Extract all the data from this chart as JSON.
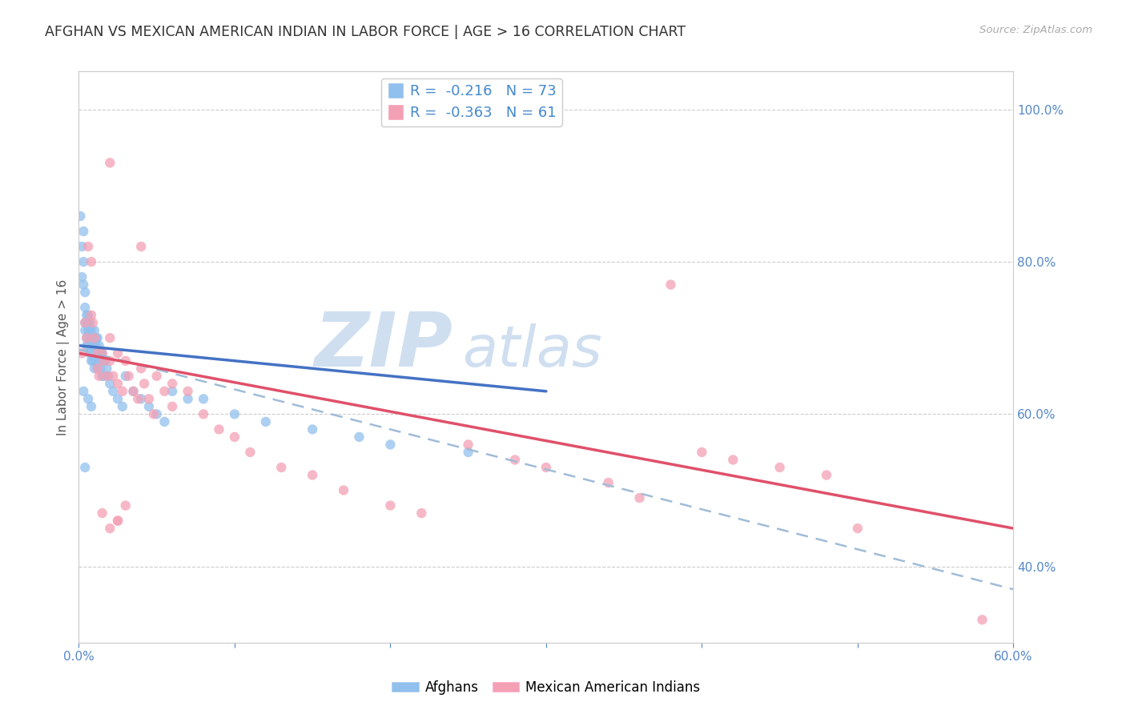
{
  "title": "AFGHAN VS MEXICAN AMERICAN INDIAN IN LABOR FORCE | AGE > 16 CORRELATION CHART",
  "source": "Source: ZipAtlas.com",
  "ylabel": "In Labor Force | Age > 16",
  "xlim": [
    0.0,
    0.6
  ],
  "ylim": [
    0.3,
    1.05
  ],
  "right_yticks": [
    0.4,
    0.6,
    0.8,
    1.0
  ],
  "right_yticklabels": [
    "40.0%",
    "60.0%",
    "80.0%",
    "100.0%"
  ],
  "xticks": [
    0.0,
    0.1,
    0.2,
    0.3,
    0.4,
    0.5,
    0.6
  ],
  "xticklabels": [
    "0.0%",
    "",
    "",
    "",
    "",
    "",
    "60.0%"
  ],
  "afghan_R": -0.216,
  "afghan_N": 73,
  "mexican_R": -0.363,
  "mexican_N": 61,
  "afghan_color": "#92C0ED",
  "mexican_color": "#F4A0B4",
  "afghan_line_color": "#4472C4",
  "mexican_line_color": "#E0506A",
  "dashed_line_color": "#A0BCD8",
  "watermark_color": "#D0DFF0",
  "background_color": "#FFFFFF",
  "grid_color": "#CCCCCC",
  "title_fontsize": 12.5,
  "axis_label_fontsize": 11,
  "tick_fontsize": 11,
  "legend_fontsize": 13,
  "afghan_line_x0": 0.0,
  "afghan_line_x1": 0.3,
  "afghan_line_y0": 0.69,
  "afghan_line_y1": 0.63,
  "mexican_line_x0": 0.0,
  "mexican_line_x1": 0.6,
  "mexican_line_y0": 0.68,
  "mexican_line_y1": 0.45,
  "dashed_line_x0": 0.0,
  "dashed_line_x1": 0.6,
  "dashed_line_y0": 0.685,
  "dashed_line_y1": 0.37,
  "afghan_scatter_x": [
    0.001,
    0.002,
    0.002,
    0.003,
    0.003,
    0.003,
    0.004,
    0.004,
    0.004,
    0.004,
    0.005,
    0.005,
    0.005,
    0.005,
    0.006,
    0.006,
    0.006,
    0.006,
    0.007,
    0.007,
    0.007,
    0.007,
    0.008,
    0.008,
    0.008,
    0.008,
    0.009,
    0.009,
    0.009,
    0.01,
    0.01,
    0.01,
    0.01,
    0.011,
    0.011,
    0.011,
    0.012,
    0.012,
    0.012,
    0.013,
    0.013,
    0.014,
    0.014,
    0.015,
    0.015,
    0.016,
    0.016,
    0.017,
    0.018,
    0.019,
    0.02,
    0.022,
    0.025,
    0.028,
    0.03,
    0.035,
    0.04,
    0.045,
    0.05,
    0.055,
    0.06,
    0.07,
    0.08,
    0.1,
    0.12,
    0.15,
    0.18,
    0.2,
    0.25,
    0.004,
    0.006,
    0.003,
    0.008
  ],
  "afghan_scatter_y": [
    0.86,
    0.82,
    0.78,
    0.84,
    0.8,
    0.77,
    0.76,
    0.74,
    0.72,
    0.71,
    0.73,
    0.72,
    0.7,
    0.69,
    0.73,
    0.72,
    0.71,
    0.69,
    0.72,
    0.71,
    0.7,
    0.68,
    0.71,
    0.7,
    0.69,
    0.67,
    0.7,
    0.69,
    0.67,
    0.71,
    0.7,
    0.68,
    0.66,
    0.7,
    0.69,
    0.67,
    0.7,
    0.68,
    0.66,
    0.69,
    0.67,
    0.68,
    0.66,
    0.68,
    0.65,
    0.67,
    0.65,
    0.67,
    0.66,
    0.65,
    0.64,
    0.63,
    0.62,
    0.61,
    0.65,
    0.63,
    0.62,
    0.61,
    0.6,
    0.59,
    0.63,
    0.62,
    0.62,
    0.6,
    0.59,
    0.58,
    0.57,
    0.56,
    0.55,
    0.53,
    0.62,
    0.63,
    0.61
  ],
  "mexican_scatter_x": [
    0.002,
    0.004,
    0.005,
    0.006,
    0.008,
    0.008,
    0.009,
    0.01,
    0.012,
    0.012,
    0.013,
    0.015,
    0.016,
    0.018,
    0.02,
    0.02,
    0.022,
    0.025,
    0.025,
    0.028,
    0.03,
    0.032,
    0.035,
    0.038,
    0.04,
    0.042,
    0.045,
    0.048,
    0.05,
    0.055,
    0.06,
    0.07,
    0.08,
    0.09,
    0.1,
    0.11,
    0.13,
    0.15,
    0.17,
    0.2,
    0.22,
    0.25,
    0.28,
    0.3,
    0.34,
    0.36,
    0.38,
    0.4,
    0.42,
    0.45,
    0.48,
    0.02,
    0.04,
    0.06,
    0.03,
    0.015,
    0.025,
    0.02,
    0.5,
    0.025,
    0.58
  ],
  "mexican_scatter_y": [
    0.68,
    0.72,
    0.7,
    0.82,
    0.8,
    0.73,
    0.72,
    0.7,
    0.68,
    0.66,
    0.65,
    0.68,
    0.67,
    0.65,
    0.7,
    0.67,
    0.65,
    0.68,
    0.64,
    0.63,
    0.67,
    0.65,
    0.63,
    0.62,
    0.66,
    0.64,
    0.62,
    0.6,
    0.65,
    0.63,
    0.61,
    0.63,
    0.6,
    0.58,
    0.57,
    0.55,
    0.53,
    0.52,
    0.5,
    0.48,
    0.47,
    0.56,
    0.54,
    0.53,
    0.51,
    0.49,
    0.77,
    0.55,
    0.54,
    0.53,
    0.52,
    0.93,
    0.82,
    0.64,
    0.48,
    0.47,
    0.46,
    0.45,
    0.45,
    0.46,
    0.33
  ]
}
